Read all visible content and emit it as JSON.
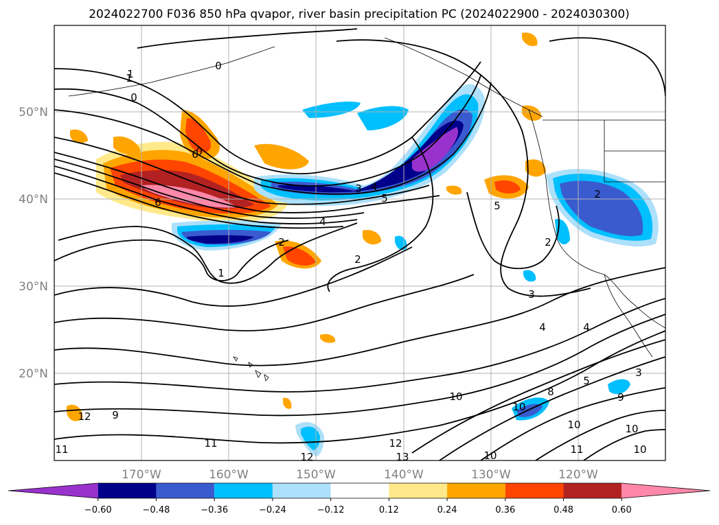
{
  "title": "2024022700 F036 850 hPa qvapor, river basin precipitation PC (2024022900 - 2024030300)",
  "map": {
    "lat_labels": [
      "50°N",
      "40°N",
      "30°N",
      "20°N"
    ],
    "lon_labels": [
      "170°W",
      "160°W",
      "150°W",
      "140°W",
      "130°W",
      "120°W"
    ],
    "grid": true
  },
  "colorbar": {
    "colors": [
      "#9932CC",
      "#00008B",
      "#3A5BCF",
      "#00BFFF",
      "#ADE0FA",
      "#FFFFFF",
      "#FFE98A",
      "#FFA500",
      "#FF4500",
      "#B22222",
      "#FF88AA"
    ],
    "tick_labels": [
      "−0.60",
      "−0.48",
      "−0.36",
      "−0.24",
      "−0.12",
      "0.12",
      "0.24",
      "0.36",
      "0.48",
      "0.60"
    ]
  },
  "contour_labels": [
    "1",
    "0",
    "0",
    "0",
    "1",
    "6",
    "6",
    "4",
    "3",
    "4",
    "5",
    "2",
    "1",
    "2",
    "2",
    "2",
    "3",
    "5",
    "3",
    "4",
    "4",
    "5",
    "10",
    "11",
    "12",
    "12",
    "13",
    "12",
    "9",
    "11",
    "10",
    "8",
    "10",
    "11",
    "10",
    "10",
    "10",
    "9"
  ]
}
